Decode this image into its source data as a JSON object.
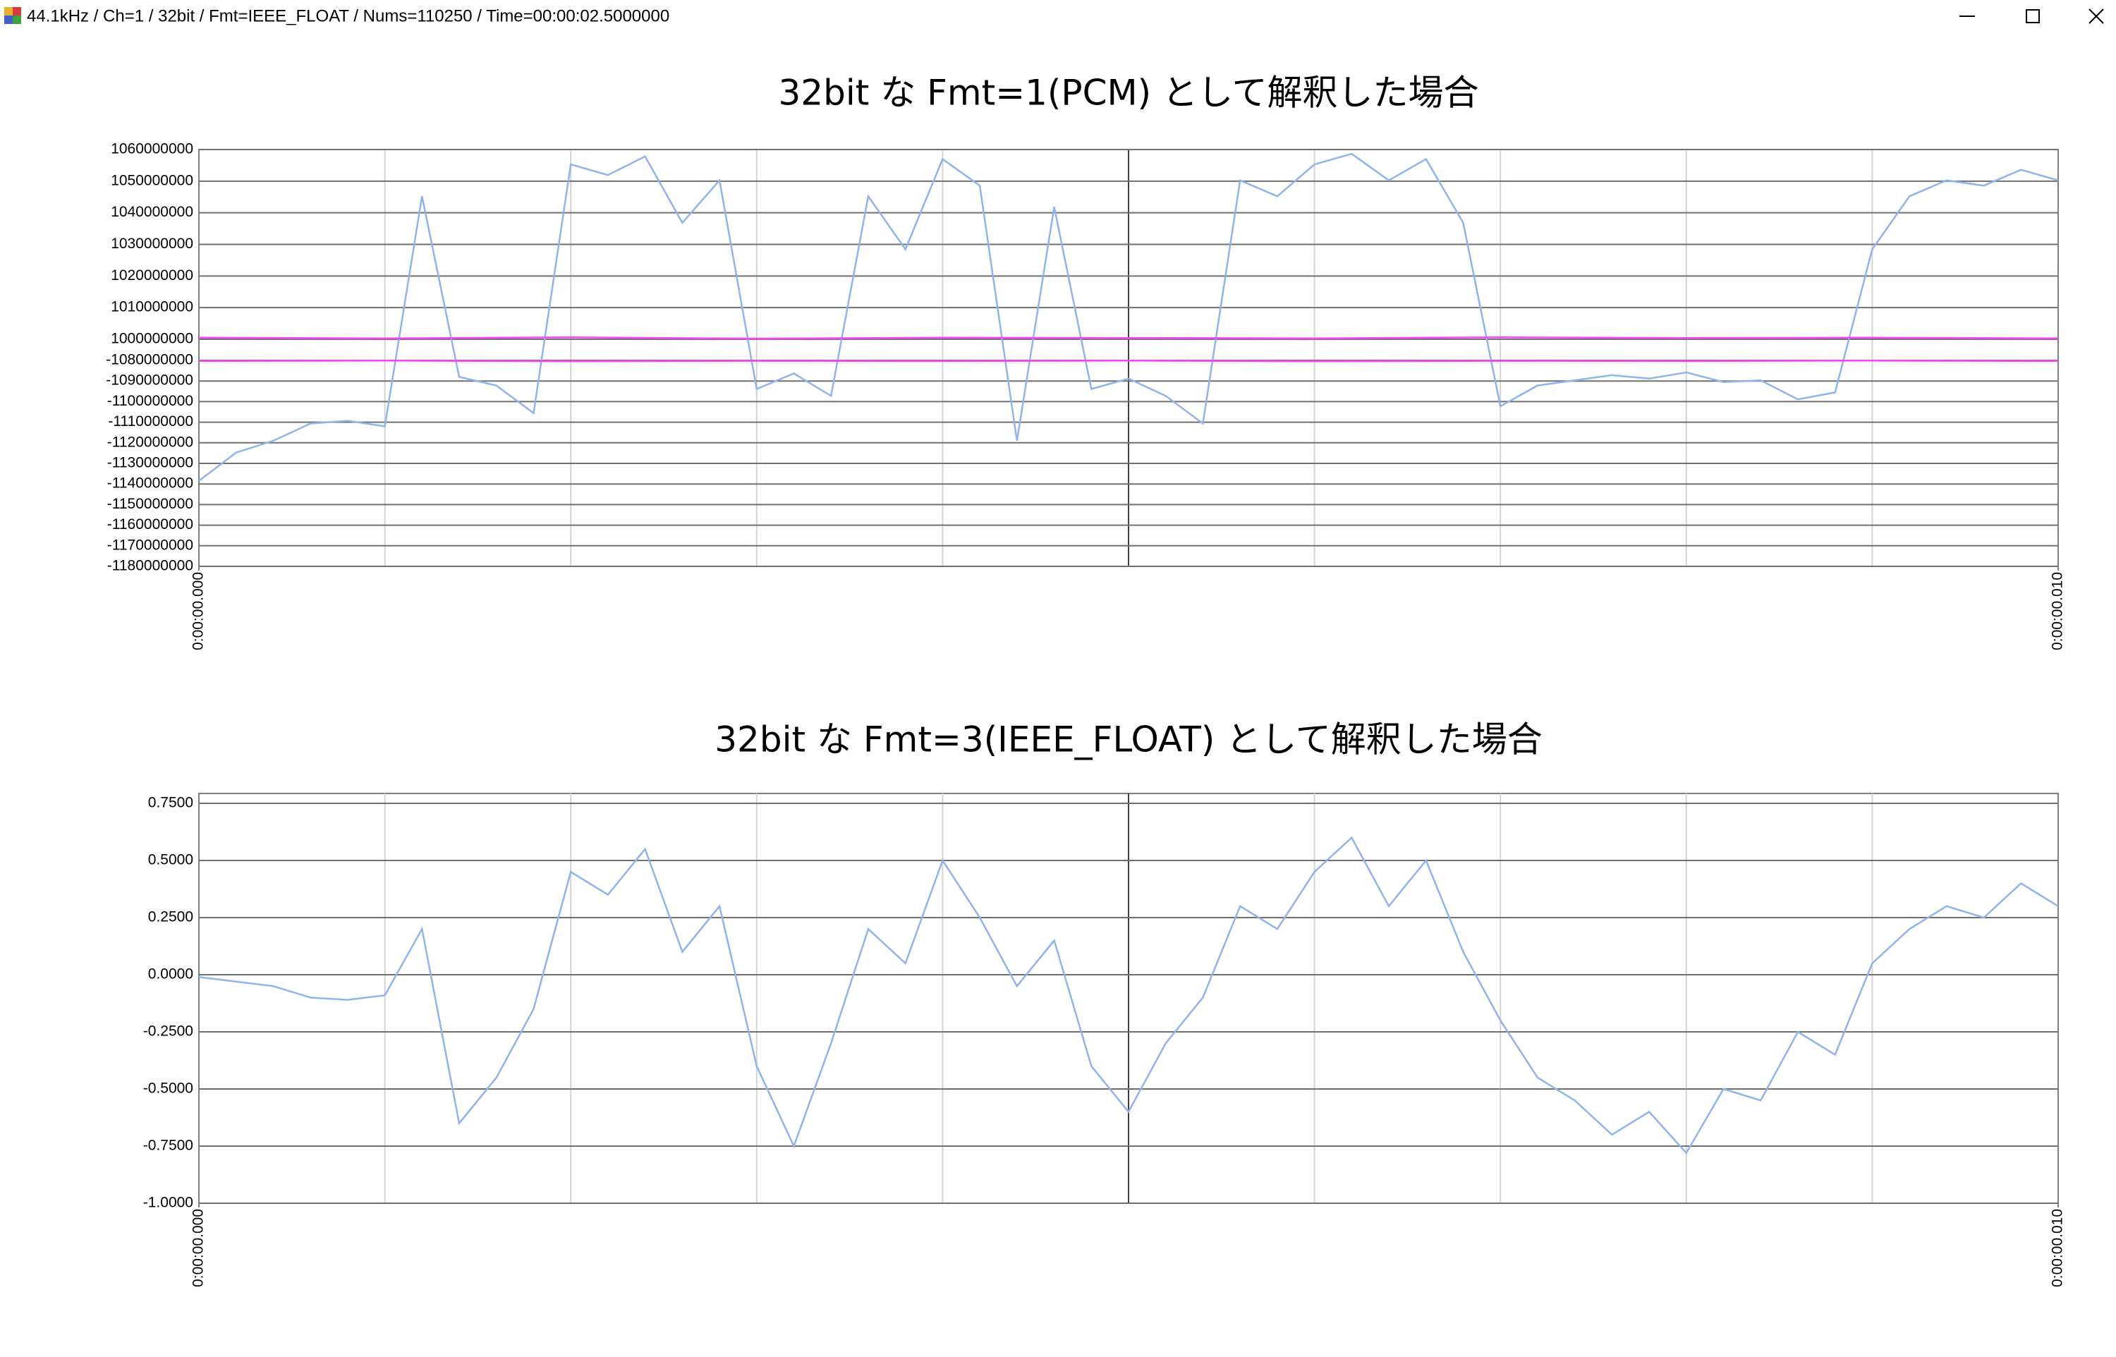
{
  "window": {
    "title": "44.1kHz / Ch=1 / 32bit / Fmt=IEEE_FLOAT / Nums=110250 / Time=00:00:02.5000000"
  },
  "chart_data": [
    {
      "type": "line",
      "title": "32bit な Fmt=1(PCM) として解釈した場合",
      "x": [
        0,
        0.0002,
        0.0004,
        0.0006,
        0.0008,
        0.001,
        0.0012,
        0.0014,
        0.0016,
        0.0018,
        0.002,
        0.0022,
        0.0024,
        0.0026,
        0.0028,
        0.003,
        0.0032,
        0.0034,
        0.0036,
        0.0038,
        0.004,
        0.0042,
        0.0044,
        0.0046,
        0.0048,
        0.005,
        0.0052,
        0.0054,
        0.0056,
        0.0058,
        0.006,
        0.0062,
        0.0064,
        0.0066,
        0.0068,
        0.007,
        0.0072,
        0.0074,
        0.0076,
        0.0078,
        0.008,
        0.0082,
        0.0084,
        0.0086,
        0.0088,
        0.009,
        0.0092,
        0.0094,
        0.0096,
        0.0098,
        0.01
      ],
      "series": [
        {
          "color": "#8fb4ec",
          "values": [
            -1138501878,
            -1124744561,
            -1119040307,
            -1110651699,
            -1109309522,
            -1111993876,
            1045220557,
            -1088002458,
            -1092196762,
            -1105618534,
            1055286886,
            1051931443,
            1057803469,
            1036831949,
            1050253722,
            -1093874483,
            -1086324736,
            -1097229926,
            1045220557,
            1028443341,
            1056964608,
            1048576000,
            -1119040307,
            1041865114,
            -1093874483,
            -1088841318,
            -1097229926,
            -1110651699,
            1050253722,
            1045220557,
            1055286886,
            1058642330,
            1050253722,
            1056964608,
            1036831949,
            -1102263091,
            -1092196762,
            -1089680179,
            -1087163597,
            -1088841318,
            -1085821420,
            -1090519040,
            -1089680179,
            -1098907648,
            -1095552205,
            1028443341,
            1045220557,
            1050253722,
            1048576000,
            1053609165,
            1050253722
          ]
        },
        {
          "color": "#ff40ff",
          "x": [
            0,
            0.001,
            0.002,
            0.003,
            0.004,
            0.005,
            0.006,
            0.007,
            0.008,
            0.009,
            0.01
          ],
          "values": [
            1000500000,
            1000300000,
            1000600000,
            1000200000,
            1000500000,
            1000400000,
            1000300000,
            1000600000,
            1000400000,
            1000500000,
            1000300000
          ]
        },
        {
          "color": "#ff40ff",
          "x": [
            0,
            0.001,
            0.002,
            0.003,
            0.004,
            0.005,
            0.006,
            0.007,
            0.008,
            0.009,
            0.01
          ],
          "values": [
            -1080300000,
            -1080100000,
            -1080400000,
            -1080200000,
            -1080300000,
            -1080100000,
            -1080400000,
            -1080200000,
            -1080300000,
            -1080100000,
            -1080300000
          ]
        }
      ],
      "xlim": [
        0,
        0.01
      ],
      "xticks": [
        {
          "value": 0,
          "label": "0:00:00.000"
        },
        {
          "value": 0.01,
          "label": "0:00:00.010"
        }
      ],
      "x_gridlines": [
        0.001,
        0.002,
        0.003,
        0.004,
        0.005,
        0.006,
        0.007,
        0.008,
        0.009
      ],
      "ylim": [
        -1180000000,
        1060000000
      ],
      "axis_break": [
        -1080000000,
        1000000000
      ],
      "yticks": [
        1060000000,
        1050000000,
        1040000000,
        1030000000,
        1020000000,
        1010000000,
        1000000000,
        -1080000000,
        -1090000000,
        -1100000000,
        -1110000000,
        -1120000000,
        -1130000000,
        -1140000000,
        -1150000000,
        -1160000000,
        -1170000000,
        -1180000000
      ],
      "grid": true
    },
    {
      "type": "line",
      "title": "32bit な Fmt=3(IEEE_FLOAT) として解釈した場合",
      "x": [
        0,
        0.0002,
        0.0004,
        0.0006,
        0.0008,
        0.001,
        0.0012,
        0.0014,
        0.0016,
        0.0018,
        0.002,
        0.0022,
        0.0024,
        0.0026,
        0.0028,
        0.003,
        0.0032,
        0.0034,
        0.0036,
        0.0038,
        0.004,
        0.0042,
        0.0044,
        0.0046,
        0.0048,
        0.005,
        0.0052,
        0.0054,
        0.0056,
        0.0058,
        0.006,
        0.0062,
        0.0064,
        0.0066,
        0.0068,
        0.007,
        0.0072,
        0.0074,
        0.0076,
        0.0078,
        0.008,
        0.0082,
        0.0084,
        0.0086,
        0.0088,
        0.009,
        0.0092,
        0.0094,
        0.0096,
        0.0098,
        0.01
      ],
      "series": [
        {
          "color": "#8fb4ec",
          "values": [
            -0.01,
            -0.03,
            -0.05,
            -0.1,
            -0.11,
            -0.09,
            0.2,
            -0.65,
            -0.45,
            -0.15,
            0.45,
            0.35,
            0.55,
            0.1,
            0.3,
            -0.4,
            -0.75,
            -0.3,
            0.2,
            0.05,
            0.5,
            0.25,
            -0.05,
            0.15,
            -0.4,
            -0.6,
            -0.3,
            -0.1,
            0.3,
            0.2,
            0.45,
            0.6,
            0.3,
            0.5,
            0.1,
            -0.2,
            -0.45,
            -0.55,
            -0.7,
            -0.6,
            -0.78,
            -0.5,
            -0.55,
            -0.25,
            -0.35,
            0.05,
            0.2,
            0.3,
            0.25,
            0.4,
            0.3
          ]
        }
      ],
      "xlim": [
        0,
        0.01
      ],
      "xticks": [
        {
          "value": 0,
          "label": "0:00:00.000"
        },
        {
          "value": 0.01,
          "label": "0:00:00.010"
        }
      ],
      "x_gridlines": [
        0.001,
        0.002,
        0.003,
        0.004,
        0.005,
        0.006,
        0.007,
        0.008,
        0.009
      ],
      "ylim": [
        -1,
        0.75
      ],
      "yticks": [
        {
          "value": 0.75,
          "label": "0.7500"
        },
        {
          "value": 0.5,
          "label": "0.5000"
        },
        {
          "value": 0.25,
          "label": "0.2500"
        },
        {
          "value": 0,
          "label": "0.0000"
        },
        {
          "value": -0.25,
          "label": "-0.2500"
        },
        {
          "value": -0.5,
          "label": "-0.5000"
        },
        {
          "value": -0.75,
          "label": "-0.7500"
        },
        {
          "value": -1,
          "label": "-1.0000"
        }
      ],
      "grid": true
    }
  ]
}
